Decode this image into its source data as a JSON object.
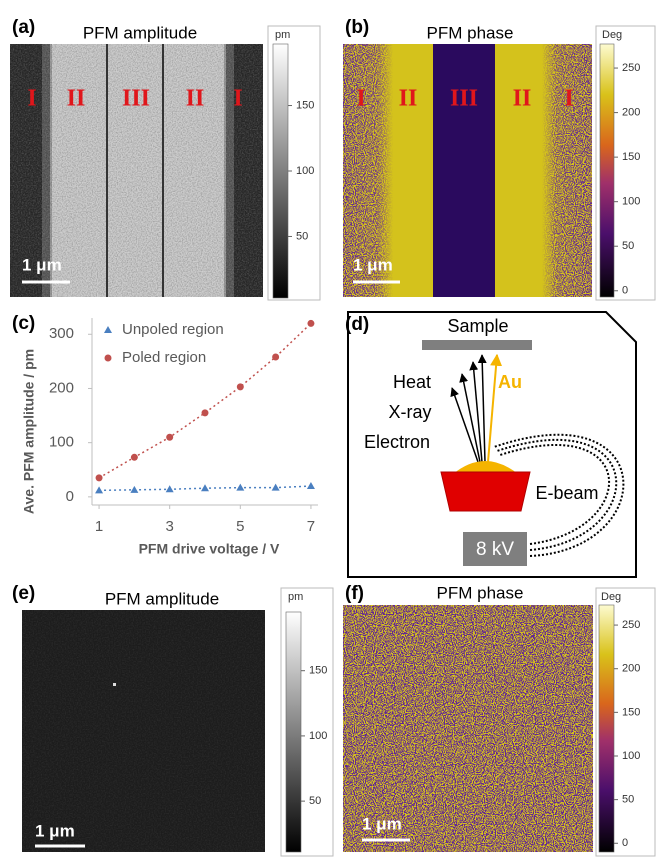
{
  "panels": [
    {
      "label": "(a)",
      "title": "PFM amplitude",
      "regions": [
        "I",
        "II",
        "III",
        "II",
        "I"
      ],
      "scale_bar": "1 μm",
      "colorbar": {
        "unit": "pm",
        "colormap": "gray",
        "lim": [
          3,
          197
        ],
        "ticks": [
          50,
          100,
          150
        ]
      }
    },
    {
      "label": "(b)",
      "title": "PFM phase",
      "regions": [
        "I",
        "II",
        "III",
        "II",
        "I"
      ],
      "scale_bar": "1 μm",
      "colorbar": {
        "unit": "Deg",
        "colormap": "phase",
        "lim": [
          -7,
          277
        ],
        "ticks": [
          0,
          50,
          100,
          150,
          200,
          250
        ]
      }
    },
    {
      "label": "(e)",
      "title": "PFM amplitude",
      "scale_bar": "1 μm",
      "colorbar": {
        "unit": "pm",
        "colormap": "gray",
        "lim": [
          11,
          195
        ],
        "ticks": [
          50,
          100,
          150
        ]
      }
    },
    {
      "label": "(f)",
      "title": "PFM phase",
      "scale_bar": "1 μm",
      "colorbar": {
        "unit": "Deg",
        "colormap": "phase",
        "lim": [
          -10,
          273
        ],
        "ticks": [
          0,
          50,
          100,
          150,
          200,
          250
        ]
      }
    }
  ],
  "chart_label": "(c)",
  "chart_data": {
    "type": "scatter",
    "x_label": "PFM drive voltage / V",
    "y_label": "Ave. PFM amplitude / pm",
    "x": [
      1,
      2,
      3,
      4,
      5,
      6,
      7
    ],
    "series": [
      {
        "name": "Unpoled region",
        "color": "#4a7fc0",
        "marker": "triangle",
        "values": [
          12,
          13,
          14,
          16,
          17,
          17,
          20
        ]
      },
      {
        "name": "Poled region",
        "color": "#c0504d",
        "marker": "circle",
        "values": [
          35,
          73,
          110,
          155,
          203,
          258,
          320
        ]
      }
    ],
    "xlim": [
      0.8,
      7.2
    ],
    "ylim": [
      -15,
      330
    ],
    "xticks": [
      1,
      3,
      5,
      7
    ],
    "yticks": [
      0,
      100,
      200,
      300
    ],
    "trend_lines": true,
    "legend": "upper-left"
  },
  "diagram": {
    "label": "(d)",
    "sample": "Sample",
    "emissions": [
      "Heat",
      "X-ray",
      "Electron"
    ],
    "au": "Au",
    "beam": "E-beam",
    "voltage": "8 kV"
  }
}
